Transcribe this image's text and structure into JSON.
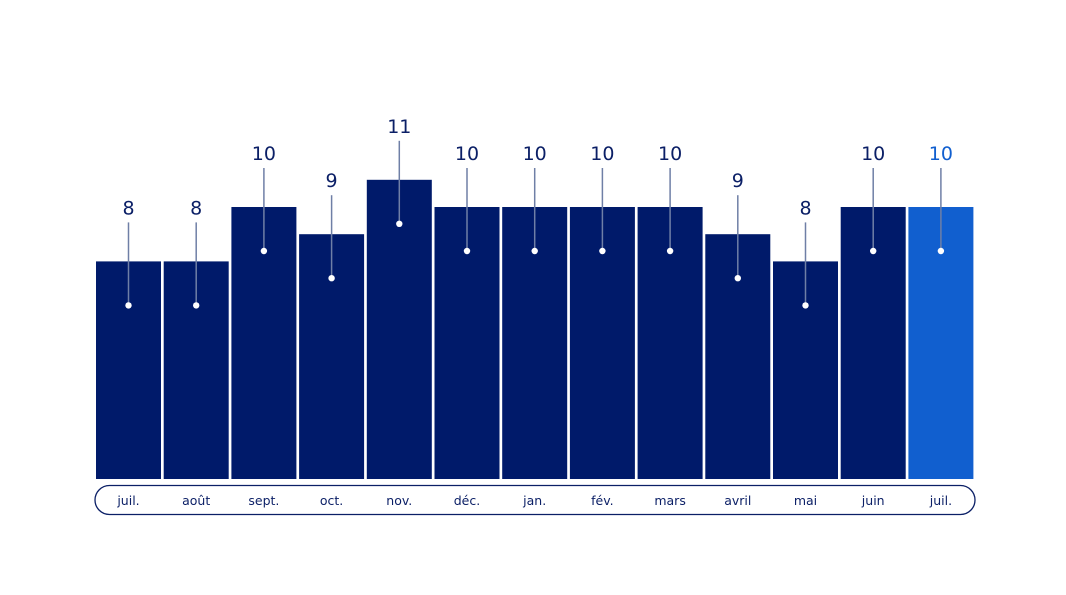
{
  "chart_data": {
    "type": "bar",
    "title": "",
    "xlabel": "",
    "ylabel": "",
    "ylim": [
      0,
      11
    ],
    "categories": [
      "juil.",
      "août",
      "sept.",
      "oct.",
      "nov.",
      "déc.",
      "jan.",
      "fév.",
      "mars",
      "avril",
      "mai",
      "juin",
      "juil."
    ],
    "values": [
      8,
      8,
      10,
      9,
      11,
      10,
      10,
      10,
      10,
      9,
      8,
      10,
      10
    ],
    "highlight_index": 12,
    "grid": false,
    "legend": "none"
  },
  "colors": {
    "bar": "#001a6a",
    "bar_highlight": "#115fcf",
    "label": "#0b1f66",
    "label_highlight": "#115fcf",
    "connector": "#6f7fa6",
    "dot": "#ffffff",
    "axis_pill_stroke": "#0b1f66"
  }
}
